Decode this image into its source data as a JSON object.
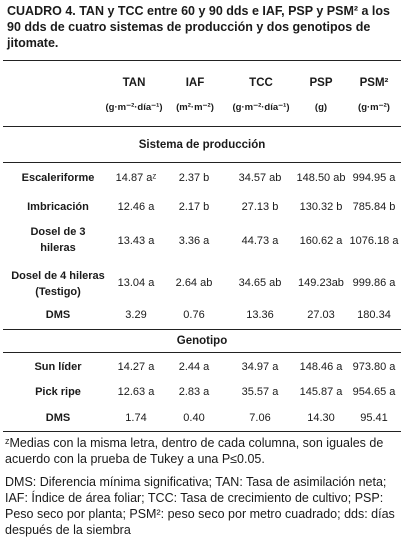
{
  "caption": "CUADRO 4. TAN y TCC entre 60 y 90 dds e IAF, PSP y PSM² a los 90 dds de cuatro sistemas de producción y dos genotipos de jitomate.",
  "headers": [
    {
      "name": "TAN",
      "unit": "(g·m⁻²·día⁻¹)"
    },
    {
      "name": "IAF",
      "unit": "(m²·m⁻²)"
    },
    {
      "name": "TCC",
      "unit": "(g·m⁻²·día⁻¹)"
    },
    {
      "name": "PSP",
      "unit": "(g)"
    },
    {
      "name": "PSM²",
      "unit": "(g·m⁻²)"
    }
  ],
  "section1": "Sistema de producción",
  "rows1": [
    {
      "label1": "Escaleriforme",
      "label2": "",
      "v": [
        "14.87 aᶻ",
        "2.37 b",
        "34.57 ab",
        "148.50 ab",
        "994.95 a"
      ]
    },
    {
      "label1": "Imbricación",
      "label2": "",
      "v": [
        "12.46 a",
        "2.17 b",
        "27.13 b",
        "130.32 b",
        "785.84 b"
      ]
    },
    {
      "label1": "Dosel de 3",
      "label2": "hileras",
      "v": [
        "13.43 a",
        "3.36 a",
        "44.73 a",
        "160.62 a",
        "1076.18 a"
      ]
    },
    {
      "label1": "Dosel de 4 hileras",
      "label2": "(Testigo)",
      "v": [
        "13.04 a",
        "2.64 ab",
        "34.65 ab",
        "149.23ab",
        "999.86 a"
      ]
    },
    {
      "label1": "DMS",
      "label2": "",
      "v": [
        "3.29",
        "0.76",
        "13.36",
        "27.03",
        "180.34"
      ]
    }
  ],
  "section2": "Genotipo",
  "rows2": [
    {
      "label1": "Sun líder",
      "label2": "",
      "v": [
        "14.27 a",
        "2.44 a",
        "34.97 a",
        "148.46 a",
        "973.80 a"
      ]
    },
    {
      "label1": "Pick ripe",
      "label2": "",
      "v": [
        "12.63 a",
        "2.83 a",
        "35.57 a",
        "145.87 a",
        "954.65 a"
      ]
    },
    {
      "label1": "DMS",
      "label2": "",
      "v": [
        "1.74",
        "0.40",
        "7.06",
        "14.30",
        "95.41"
      ]
    }
  ],
  "footnote1": "ᶻMedias con la misma letra, dentro de cada columna, son iguales de acuerdo con la prueba de Tukey a una P≤0.05.",
  "footnote2": "DMS: Diferencia mínima significativa; TAN: Tasa de asimilación neta; IAF: Índice de área foliar; TCC: Tasa de crecimiento de cultivo; PSP: Peso seco por planta; PSM²: peso seco por metro cuadrado; dds: días después de la siembra"
}
